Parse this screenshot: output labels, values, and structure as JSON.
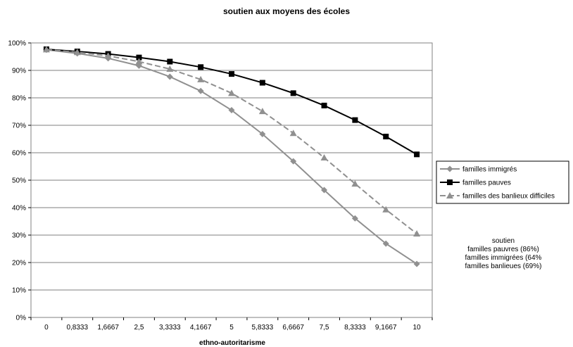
{
  "chart_data": {
    "type": "line",
    "title": "soutien aux moyens des écoles",
    "xlabel": "ethno-autoritarisme",
    "ylabel": "",
    "categories": [
      "0",
      "0,8333",
      "1,6667",
      "2,5",
      "3,3333",
      "4,1667",
      "5",
      "5,8333",
      "6,6667",
      "7,5",
      "8,3333",
      "9,1667",
      "10"
    ],
    "y_ticks": [
      "0%",
      "10%",
      "20%",
      "30%",
      "40%",
      "50%",
      "60%",
      "70%",
      "80%",
      "90%",
      "100%"
    ],
    "ylim": [
      0,
      1
    ],
    "grid": "horizontal",
    "legend_position": "right",
    "series": [
      {
        "name": "familles immigrés",
        "color": "#909090",
        "marker": "diamond",
        "dash": "solid",
        "values": [
          0.975,
          0.962,
          0.944,
          0.917,
          0.877,
          0.825,
          0.755,
          0.668,
          0.569,
          0.464,
          0.361,
          0.269,
          0.195
        ]
      },
      {
        "name": "familles pauves",
        "color": "#000000",
        "marker": "square",
        "dash": "solid",
        "values": [
          0.977,
          0.969,
          0.96,
          0.947,
          0.932,
          0.912,
          0.887,
          0.855,
          0.817,
          0.772,
          0.719,
          0.659,
          0.594
        ]
      },
      {
        "name": "familles des banlieux difficiles",
        "color": "#909090",
        "marker": "triangle",
        "dash": "dashed",
        "values": [
          0.976,
          0.966,
          0.953,
          0.932,
          0.905,
          0.867,
          0.817,
          0.751,
          0.671,
          0.582,
          0.487,
          0.393,
          0.305
        ]
      }
    ],
    "annotation": [
      "soutien",
      "familles pauvres (86%)",
      "familles immigrées (64%",
      "familles  banlieues (69%)"
    ]
  }
}
